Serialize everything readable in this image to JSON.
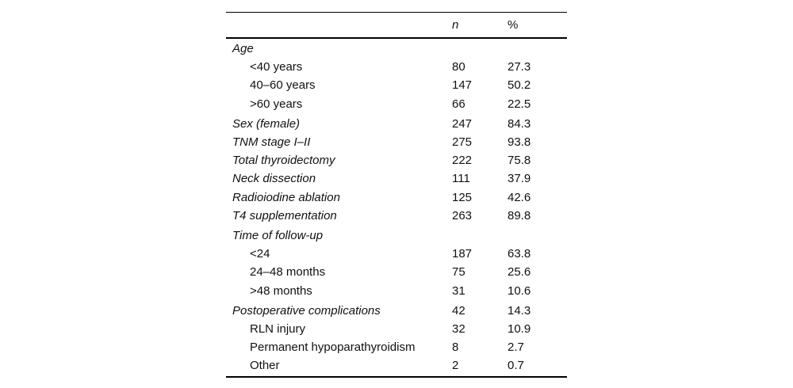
{
  "table": {
    "header": {
      "col_n": "n",
      "col_pct": "%"
    },
    "rows": [
      {
        "label": "Age",
        "n": "",
        "pct": ""
      },
      {
        "label": "<40 years",
        "n": "80",
        "pct": "27.3"
      },
      {
        "label": "40–60 years",
        "n": "147",
        "pct": "50.2"
      },
      {
        "label": ">60 years",
        "n": "66",
        "pct": "22.5"
      },
      {
        "label": "Sex (female)",
        "n": "247",
        "pct": "84.3"
      },
      {
        "label": "TNM stage I–II",
        "n": "275",
        "pct": "93.8"
      },
      {
        "label": "Total thyroidectomy",
        "n": "222",
        "pct": "75.8"
      },
      {
        "label": "Neck dissection",
        "n": "111",
        "pct": "37.9"
      },
      {
        "label": "Radioiodine ablation",
        "n": "125",
        "pct": "42.6"
      },
      {
        "label": "T4 supplementation",
        "n": "263",
        "pct": "89.8"
      },
      {
        "label": "Time of follow-up",
        "n": "",
        "pct": ""
      },
      {
        "label": "<24",
        "n": "187",
        "pct": "63.8"
      },
      {
        "label": "24–48 months",
        "n": "75",
        "pct": "25.6"
      },
      {
        "label": ">48 months",
        "n": "31",
        "pct": "10.6"
      },
      {
        "label": "Postoperative complications",
        "n": "42",
        "pct": "14.3"
      },
      {
        "label": "RLN injury",
        "n": "32",
        "pct": "10.9"
      },
      {
        "label": "Permanent hypoparathyroidism",
        "n": "8",
        "pct": "2.7"
      },
      {
        "label": "Other",
        "n": "2",
        "pct": "0.7"
      }
    ]
  }
}
